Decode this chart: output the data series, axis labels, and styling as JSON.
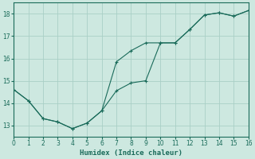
{
  "xlabel": "Humidex (Indice chaleur)",
  "background_color": "#cde8e0",
  "line_color": "#1a6b5a",
  "grid_color": "#aacfc6",
  "line1_x": [
    0,
    1,
    2,
    3,
    4,
    5,
    6,
    7,
    8,
    9,
    10,
    11,
    12,
    13,
    14,
    15,
    16
  ],
  "line1_y": [
    14.6,
    14.1,
    13.3,
    13.15,
    12.85,
    13.1,
    13.65,
    14.55,
    14.9,
    15.0,
    16.7,
    16.7,
    17.3,
    17.95,
    18.05,
    17.9,
    18.15
  ],
  "line2_x": [
    0,
    1,
    2,
    3,
    4,
    5,
    6,
    7,
    8,
    9,
    10,
    11,
    12,
    13,
    14,
    15,
    16
  ],
  "line2_y": [
    14.6,
    14.1,
    13.3,
    13.15,
    12.85,
    13.1,
    13.65,
    15.85,
    16.35,
    16.7,
    16.7,
    16.7,
    17.3,
    17.95,
    18.05,
    17.9,
    18.15
  ],
  "xlim": [
    0,
    16
  ],
  "ylim": [
    12.5,
    18.5
  ],
  "xticks": [
    0,
    1,
    2,
    3,
    4,
    5,
    6,
    7,
    8,
    9,
    10,
    11,
    12,
    13,
    14,
    15,
    16
  ],
  "yticks": [
    13,
    14,
    15,
    16,
    17,
    18
  ],
  "tick_fontsize": 5.5,
  "xlabel_fontsize": 6.5
}
